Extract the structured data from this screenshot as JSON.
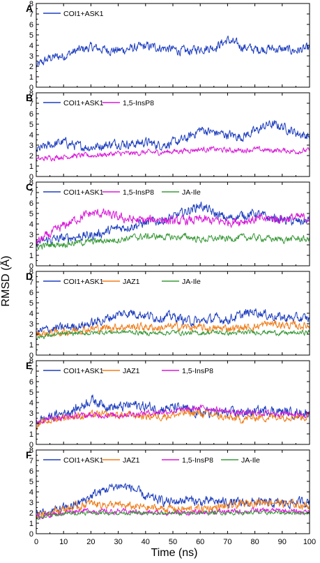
{
  "figure": {
    "ylabel": "RMSD (Å)",
    "xlabel": "Time (ns)",
    "colors": {
      "COI1+ASK1": "#1f3fbf",
      "1,5-InsP8": "#d91ad9",
      "JA-Ile": "#3a9a3a",
      "JAZ1": "#f07d1a"
    }
  },
  "chart_data": [
    {
      "type": "line",
      "panel": "A",
      "xlim": [
        0,
        100
      ],
      "ylim": [
        0,
        8
      ],
      "xticks": [
        0,
        10,
        20,
        30,
        40,
        50,
        60,
        70,
        80,
        90,
        100
      ],
      "yticks": [
        0,
        1,
        2,
        3,
        4,
        5,
        6,
        7,
        8
      ],
      "series": [
        {
          "name": "COI1+ASK1",
          "x": [
            0,
            5,
            10,
            15,
            20,
            25,
            30,
            35,
            40,
            45,
            50,
            55,
            60,
            65,
            70,
            75,
            80,
            85,
            90,
            95,
            100
          ],
          "y": [
            2.0,
            2.8,
            3.0,
            3.5,
            3.8,
            3.6,
            3.5,
            3.7,
            3.9,
            3.8,
            3.6,
            3.4,
            3.7,
            3.8,
            4.5,
            3.9,
            3.6,
            3.7,
            3.6,
            3.5,
            3.7
          ],
          "noise": 0.35
        }
      ]
    },
    {
      "type": "line",
      "panel": "B",
      "xlim": [
        0,
        100
      ],
      "ylim": [
        0,
        8
      ],
      "xticks": [
        0,
        10,
        20,
        30,
        40,
        50,
        60,
        70,
        80,
        90,
        100
      ],
      "yticks": [
        0,
        1,
        2,
        3,
        4,
        5,
        6,
        7,
        8
      ],
      "series": [
        {
          "name": "COI1+ASK1",
          "x": [
            0,
            5,
            10,
            15,
            20,
            25,
            30,
            35,
            40,
            45,
            50,
            55,
            60,
            65,
            70,
            75,
            80,
            85,
            90,
            95,
            100
          ],
          "y": [
            2.5,
            3.0,
            3.3,
            2.9,
            2.8,
            3.0,
            3.2,
            3.1,
            3.3,
            3.0,
            3.2,
            3.6,
            4.5,
            4.2,
            4.0,
            3.8,
            4.3,
            5.0,
            4.8,
            4.2,
            3.8
          ],
          "noise": 0.35
        },
        {
          "name": "1,5-InsP8",
          "x": [
            0,
            5,
            10,
            15,
            20,
            25,
            30,
            35,
            40,
            45,
            50,
            55,
            60,
            65,
            70,
            75,
            80,
            85,
            90,
            95,
            100
          ],
          "y": [
            1.6,
            1.8,
            1.9,
            2.0,
            2.0,
            2.1,
            2.2,
            2.2,
            2.3,
            2.3,
            2.4,
            2.5,
            2.6,
            2.6,
            2.5,
            2.5,
            2.6,
            2.5,
            2.5,
            2.4,
            2.5
          ],
          "noise": 0.2
        }
      ]
    },
    {
      "type": "line",
      "panel": "C",
      "xlim": [
        0,
        100
      ],
      "ylim": [
        0,
        8
      ],
      "xticks": [
        0,
        10,
        20,
        30,
        40,
        50,
        60,
        70,
        80,
        90,
        100
      ],
      "yticks": [
        0,
        1,
        2,
        3,
        4,
        5,
        6,
        7,
        8
      ],
      "series": [
        {
          "name": "COI1+ASK1",
          "x": [
            0,
            5,
            10,
            15,
            20,
            25,
            30,
            35,
            40,
            45,
            50,
            55,
            60,
            65,
            70,
            75,
            80,
            85,
            90,
            95,
            100
          ],
          "y": [
            2.2,
            2.5,
            2.6,
            2.8,
            2.9,
            3.2,
            3.6,
            3.8,
            4.1,
            4.3,
            4.6,
            5.2,
            5.8,
            5.0,
            4.5,
            4.8,
            5.0,
            4.6,
            4.4,
            4.2,
            4.3
          ],
          "noise": 0.35
        },
        {
          "name": "1,5-InsP8",
          "x": [
            0,
            5,
            10,
            15,
            20,
            25,
            30,
            35,
            40,
            45,
            50,
            55,
            60,
            65,
            70,
            75,
            80,
            85,
            90,
            95,
            100
          ],
          "y": [
            2.2,
            3.0,
            3.8,
            4.5,
            5.0,
            5.0,
            4.6,
            4.4,
            4.3,
            4.5,
            4.2,
            4.3,
            4.4,
            4.3,
            4.2,
            4.3,
            4.4,
            4.5,
            4.5,
            4.6,
            4.6
          ],
          "noise": 0.35
        },
        {
          "name": "JA-Ile",
          "x": [
            0,
            5,
            10,
            15,
            20,
            25,
            30,
            35,
            40,
            45,
            50,
            55,
            60,
            65,
            70,
            75,
            80,
            85,
            90,
            95,
            100
          ],
          "y": [
            1.8,
            2.0,
            2.1,
            2.2,
            2.3,
            2.4,
            2.5,
            2.7,
            2.8,
            2.8,
            2.7,
            2.8,
            2.5,
            2.6,
            2.6,
            2.7,
            2.7,
            2.6,
            2.5,
            2.6,
            2.5
          ],
          "noise": 0.25
        }
      ]
    },
    {
      "type": "line",
      "panel": "D",
      "xlim": [
        0,
        100
      ],
      "ylim": [
        0,
        8
      ],
      "xticks": [
        0,
        10,
        20,
        30,
        40,
        50,
        60,
        70,
        80,
        90,
        100
      ],
      "yticks": [
        0,
        1,
        2,
        3,
        4,
        5,
        6,
        7,
        8
      ],
      "series": [
        {
          "name": "COI1+ASK1",
          "x": [
            0,
            5,
            10,
            15,
            20,
            25,
            30,
            35,
            40,
            45,
            50,
            55,
            60,
            65,
            70,
            75,
            80,
            85,
            90,
            95,
            100
          ],
          "y": [
            2.2,
            2.5,
            2.6,
            2.8,
            3.0,
            3.4,
            3.9,
            4.1,
            3.8,
            3.6,
            3.7,
            3.3,
            3.2,
            3.5,
            3.4,
            3.8,
            4.2,
            3.8,
            3.6,
            3.5,
            3.5
          ],
          "noise": 0.35
        },
        {
          "name": "JAZ1",
          "x": [
            0,
            5,
            10,
            15,
            20,
            25,
            30,
            35,
            40,
            45,
            50,
            55,
            60,
            65,
            70,
            75,
            80,
            85,
            90,
            95,
            100
          ],
          "y": [
            2.0,
            2.1,
            2.2,
            2.4,
            2.5,
            2.6,
            2.7,
            2.7,
            2.7,
            2.6,
            2.7,
            2.7,
            2.6,
            2.5,
            2.6,
            2.6,
            2.7,
            3.0,
            2.9,
            2.8,
            2.8
          ],
          "noise": 0.3
        },
        {
          "name": "JA-Ile",
          "x": [
            0,
            5,
            10,
            15,
            20,
            25,
            30,
            35,
            40,
            45,
            50,
            55,
            60,
            65,
            70,
            75,
            80,
            85,
            90,
            95,
            100
          ],
          "y": [
            1.7,
            1.9,
            2.0,
            2.1,
            2.1,
            2.2,
            2.2,
            2.2,
            2.1,
            2.1,
            2.2,
            2.1,
            2.1,
            2.2,
            2.1,
            2.1,
            2.2,
            2.2,
            2.1,
            2.1,
            2.2
          ],
          "noise": 0.18
        }
      ]
    },
    {
      "type": "line",
      "panel": "E",
      "xlim": [
        0,
        100
      ],
      "ylim": [
        0,
        8
      ],
      "xticks": [
        0,
        10,
        20,
        30,
        40,
        50,
        60,
        70,
        80,
        90,
        100
      ],
      "yticks": [
        0,
        1,
        2,
        3,
        4,
        5,
        6,
        7,
        8
      ],
      "series": [
        {
          "name": "COI1+ASK1",
          "x": [
            0,
            5,
            10,
            15,
            20,
            25,
            30,
            35,
            40,
            45,
            50,
            55,
            60,
            65,
            70,
            75,
            80,
            85,
            90,
            95,
            100
          ],
          "y": [
            2.2,
            2.6,
            3.0,
            3.4,
            4.3,
            3.8,
            3.5,
            3.8,
            3.6,
            3.4,
            3.5,
            3.3,
            3.0,
            3.1,
            3.0,
            3.0,
            3.1,
            3.3,
            3.1,
            3.0,
            3.0
          ],
          "noise": 0.38
        },
        {
          "name": "JAZ1",
          "x": [
            0,
            5,
            10,
            15,
            20,
            25,
            30,
            35,
            40,
            45,
            50,
            55,
            60,
            65,
            70,
            75,
            80,
            85,
            90,
            95,
            100
          ],
          "y": [
            1.8,
            2.3,
            2.6,
            2.7,
            2.8,
            2.8,
            2.8,
            2.8,
            2.7,
            2.7,
            2.8,
            3.0,
            3.0,
            2.8,
            2.5,
            2.4,
            2.6,
            2.6,
            2.7,
            2.7,
            2.6
          ],
          "noise": 0.3
        },
        {
          "name": "1,5-InsP8",
          "x": [
            0,
            5,
            10,
            15,
            20,
            25,
            30,
            35,
            40,
            45,
            50,
            55,
            60,
            65,
            70,
            75,
            80,
            85,
            90,
            95,
            100
          ],
          "y": [
            2.2,
            2.5,
            2.6,
            2.7,
            2.8,
            2.8,
            2.8,
            2.9,
            3.0,
            3.1,
            3.2,
            3.3,
            3.5,
            3.4,
            3.1,
            3.0,
            3.0,
            3.0,
            3.0,
            2.9,
            2.9
          ],
          "noise": 0.22
        }
      ]
    },
    {
      "type": "line",
      "panel": "F",
      "xlim": [
        0,
        100
      ],
      "ylim": [
        0,
        8
      ],
      "xticks": [
        0,
        10,
        20,
        30,
        40,
        50,
        60,
        70,
        80,
        90,
        100
      ],
      "yticks": [
        0,
        1,
        2,
        3,
        4,
        5,
        6,
        7,
        8
      ],
      "series": [
        {
          "name": "COI1+ASK1",
          "x": [
            0,
            5,
            10,
            15,
            20,
            25,
            30,
            35,
            40,
            45,
            50,
            55,
            60,
            65,
            70,
            75,
            80,
            85,
            90,
            95,
            100
          ],
          "y": [
            1.9,
            2.1,
            2.4,
            2.8,
            3.6,
            4.2,
            4.6,
            4.4,
            3.5,
            3.2,
            3.0,
            3.3,
            3.0,
            3.1,
            3.0,
            2.9,
            3.0,
            2.9,
            2.9,
            3.0,
            3.1
          ],
          "noise": 0.35
        },
        {
          "name": "JAZ1",
          "x": [
            0,
            5,
            10,
            15,
            20,
            25,
            30,
            35,
            40,
            45,
            50,
            55,
            60,
            65,
            70,
            75,
            80,
            85,
            90,
            95,
            100
          ],
          "y": [
            1.8,
            2.1,
            2.3,
            2.6,
            2.9,
            2.8,
            2.7,
            2.6,
            2.5,
            2.4,
            2.4,
            2.3,
            2.4,
            2.5,
            2.6,
            2.8,
            3.0,
            3.1,
            2.9,
            2.8,
            2.7
          ],
          "noise": 0.3
        },
        {
          "name": "1,5-InsP8",
          "x": [
            0,
            5,
            10,
            15,
            20,
            25,
            30,
            35,
            40,
            45,
            50,
            55,
            60,
            65,
            70,
            75,
            80,
            85,
            90,
            95,
            100
          ],
          "y": [
            1.6,
            1.8,
            2.0,
            2.2,
            2.2,
            2.1,
            2.1,
            2.1,
            2.0,
            2.0,
            2.0,
            2.0,
            2.0,
            2.1,
            2.1,
            2.1,
            2.2,
            2.2,
            2.2,
            2.1,
            2.1
          ],
          "noise": 0.2
        },
        {
          "name": "JA-Ile",
          "x": [
            0,
            5,
            10,
            15,
            20,
            25,
            30,
            35,
            40,
            45,
            50,
            55,
            60,
            65,
            70,
            75,
            80,
            85,
            90,
            95,
            100
          ],
          "y": [
            1.5,
            1.7,
            1.9,
            2.0,
            2.0,
            2.0,
            2.0,
            2.0,
            1.9,
            1.9,
            2.0,
            1.9,
            2.0,
            2.0,
            2.0,
            2.0,
            2.0,
            2.0,
            2.0,
            2.0,
            2.0
          ],
          "noise": 0.15
        }
      ]
    }
  ]
}
